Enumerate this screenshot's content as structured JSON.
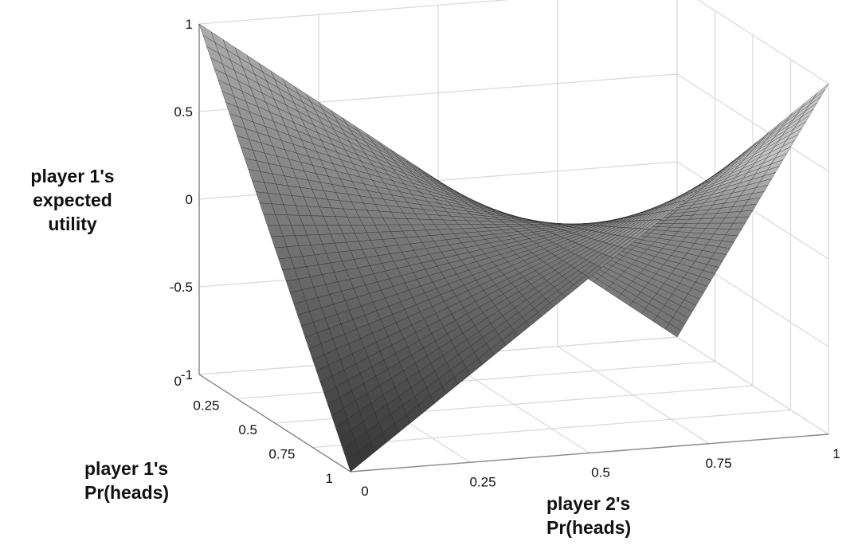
{
  "chart_data": {
    "type": "surface3d",
    "title": "",
    "zlabel": [
      "player 1's",
      "expected",
      "utility"
    ],
    "ylabel": [
      "player 1's",
      "Pr(heads)"
    ],
    "xlabel": [
      "player 2's",
      "Pr(heads)"
    ],
    "x_ticks": [
      "0",
      "0.25",
      "0.5",
      "0.75",
      "1"
    ],
    "y_ticks": [
      "0",
      "0.25",
      "0.5",
      "0.75",
      "1"
    ],
    "z_ticks": [
      "1",
      "0.5",
      "0",
      "-0.5",
      "-1"
    ],
    "x_range": [
      0,
      1
    ],
    "y_range": [
      0,
      1
    ],
    "z_range": [
      -1,
      1
    ],
    "grid": true,
    "surface": {
      "function": "z = (2p-1)(2q-1)",
      "grid_size": 40,
      "corners": [
        {
          "p1": 0,
          "p2": 0,
          "z": 1
        },
        {
          "p1": 0,
          "p2": 1,
          "z": -1
        },
        {
          "p1": 1,
          "p2": 0,
          "z": -1
        },
        {
          "p1": 1,
          "p2": 1,
          "z": 1
        }
      ]
    },
    "colors": {
      "surface_dark": "#4a4a4a",
      "surface_light": "#9a9a9a",
      "mesh": "#222222",
      "grid": "#d8d8d8"
    }
  }
}
